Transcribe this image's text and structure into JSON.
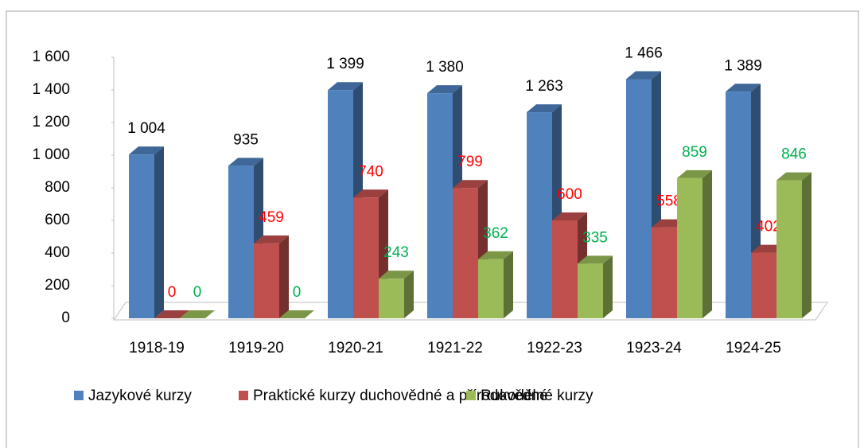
{
  "chart_data": {
    "type": "bar3d",
    "categories": [
      "1918-19",
      "1919-20",
      "1920-21",
      "1921-22",
      "1922-23",
      "1923-24",
      "1924-25"
    ],
    "series": [
      {
        "name": "Jazykové kurzy",
        "color": "#4f81bd",
        "label_color": "#000000",
        "values": [
          1004,
          935,
          1399,
          1380,
          1263,
          1466,
          1389
        ],
        "value_labels": [
          "1 004",
          "935",
          "1 399",
          "1 380",
          "1 263",
          "1 466",
          "1 389"
        ]
      },
      {
        "name": "Praktické kurzy duchovědné a přírodovědné",
        "color": "#c0504d",
        "label_color": "#ff0000",
        "values": [
          0,
          459,
          740,
          799,
          600,
          558,
          402
        ]
      },
      {
        "name": "Rukodělné kurzy",
        "color": "#9bbb59",
        "label_color": "#00b050",
        "values": [
          0,
          0,
          243,
          362,
          335,
          859,
          846
        ]
      }
    ],
    "ylim": [
      0,
      1600
    ],
    "yticks": [
      0,
      200,
      400,
      600,
      800,
      {
        "value": 1000,
        "label": "1 000"
      },
      {
        "value": 1200,
        "label": "1 200"
      },
      {
        "value": 1400,
        "label": "1 400"
      },
      {
        "value": 1600,
        "label": "1 600"
      }
    ],
    "legend": "bottom"
  }
}
